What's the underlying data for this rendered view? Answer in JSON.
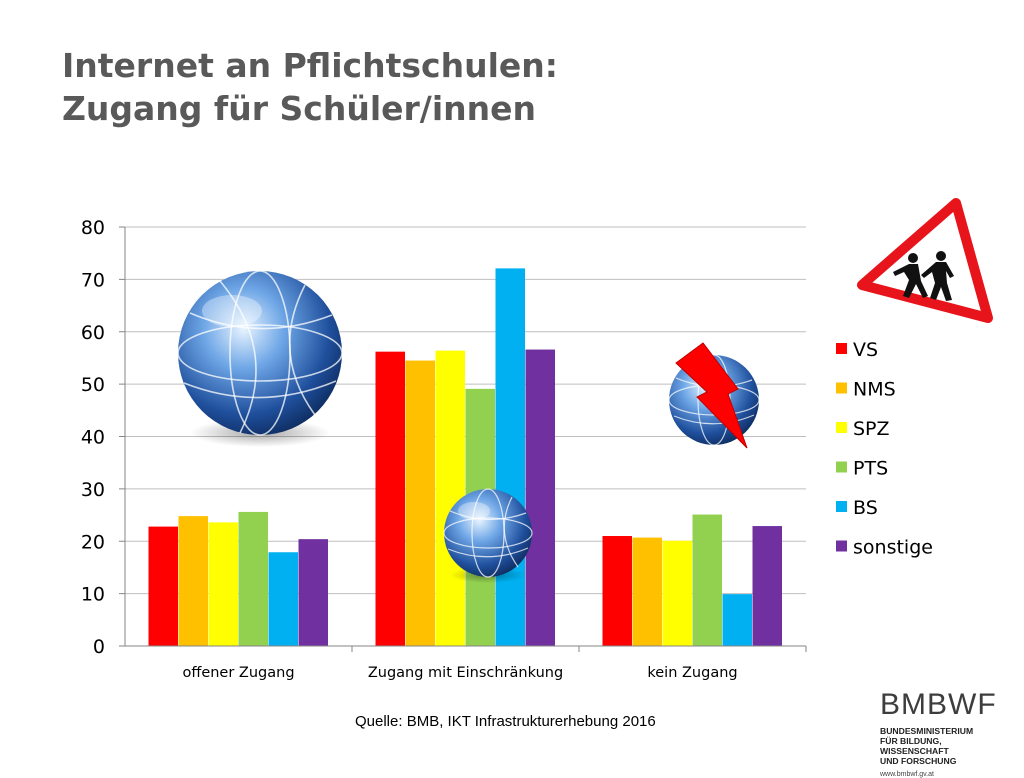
{
  "title": {
    "line1": "Internet an Pflichtschulen:",
    "line2": "Zugang für Schüler/innen"
  },
  "source": "Quelle: BMB, IKT Infrastrukturerhebung 2016",
  "logo": {
    "acronym": "BMBWF",
    "ministry": "BUNDESMINISTERIUM\nFÜR BILDUNG, WISSENSCHAFT\nUND FORSCHUNG",
    "url": "www.bmbwf.gv.at"
  },
  "icons": [
    "globe-icon",
    "globe-icon",
    "broken-globe-icon",
    "lightning-icon",
    "children-crossing-sign-icon"
  ],
  "chart_data": {
    "type": "bar",
    "categories": [
      "offener Zugang",
      "Zugang mit Einschränkung",
      "kein Zugang"
    ],
    "series": [
      {
        "name": "VS",
        "color": "#ff0000",
        "values": [
          22.8,
          56.2,
          21.0
        ]
      },
      {
        "name": "NMS",
        "color": "#ffc000",
        "values": [
          24.8,
          54.5,
          20.7
        ]
      },
      {
        "name": "SPZ",
        "color": "#ffff00",
        "values": [
          23.6,
          56.4,
          20.1
        ]
      },
      {
        "name": "PTS",
        "color": "#92d050",
        "values": [
          25.6,
          49.1,
          25.1
        ]
      },
      {
        "name": "BS",
        "color": "#00b0f0",
        "values": [
          17.9,
          72.1,
          9.9
        ]
      },
      {
        "name": "sonstige",
        "color": "#7030a0",
        "values": [
          20.4,
          56.6,
          22.9
        ]
      }
    ],
    "ylim": [
      0,
      80
    ],
    "yticks": [
      0,
      10,
      20,
      30,
      40,
      50,
      60,
      70,
      80
    ],
    "grid": true,
    "legend": "right"
  }
}
